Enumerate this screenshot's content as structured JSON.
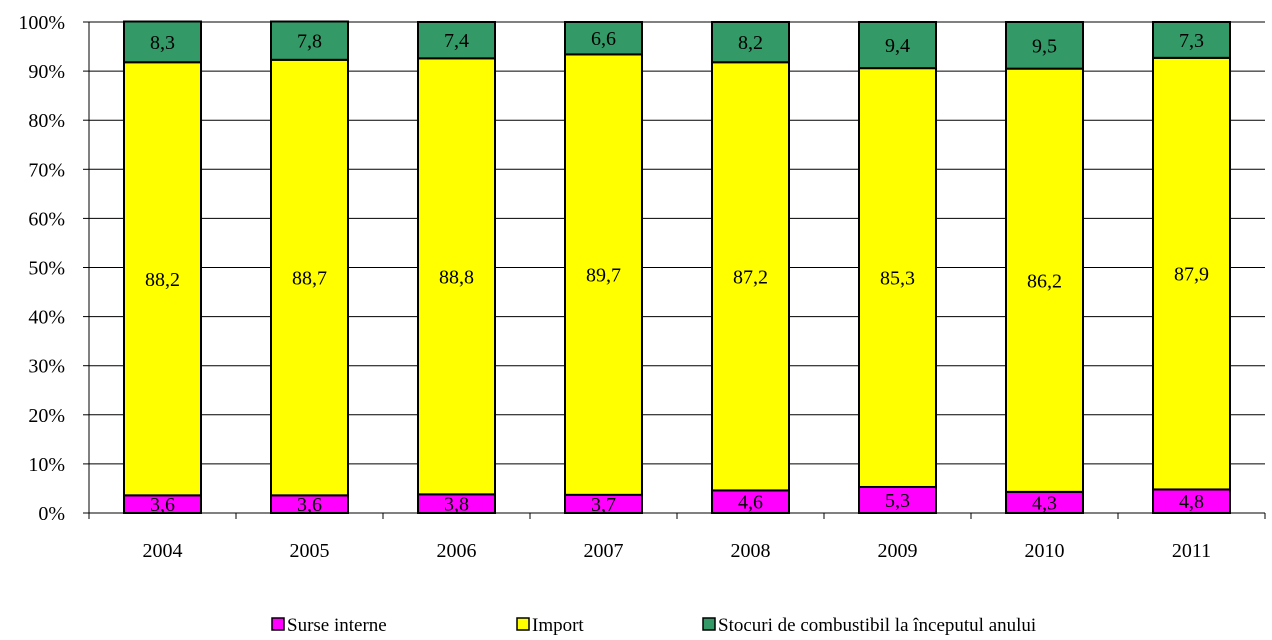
{
  "chart_data": {
    "type": "bar",
    "stacked": true,
    "percent_stacked": true,
    "categories": [
      "2004",
      "2005",
      "2006",
      "2007",
      "2008",
      "2009",
      "2010",
      "2011"
    ],
    "series": [
      {
        "name": "Surse interne",
        "color": "#ff00ff",
        "values": [
          3.6,
          3.6,
          3.8,
          3.7,
          4.6,
          5.3,
          4.3,
          4.8
        ],
        "labels": [
          "3,6",
          "3,6",
          "3,8",
          "3,7",
          "4,6",
          "5,3",
          "4,3",
          "4,8"
        ]
      },
      {
        "name": "Import",
        "color": "#ffff00",
        "values": [
          88.2,
          88.7,
          88.8,
          89.7,
          87.2,
          85.3,
          86.2,
          87.9
        ],
        "labels": [
          "88,2",
          "88,7",
          "88,8",
          "89,7",
          "87,2",
          "85,3",
          "86,2",
          "87,9"
        ]
      },
      {
        "name": "Stocuri de combustibil la începutul anului",
        "color": "#339966",
        "values": [
          8.3,
          7.8,
          7.4,
          6.6,
          8.2,
          9.4,
          9.5,
          7.3
        ],
        "labels": [
          "8,3",
          "7,8",
          "7,4",
          "6,6",
          "8,2",
          "9,4",
          "9,5",
          "7,3"
        ]
      }
    ],
    "y_ticks": [
      "0%",
      "10%",
      "20%",
      "30%",
      "40%",
      "50%",
      "60%",
      "70%",
      "80%",
      "90%",
      "100%"
    ],
    "ylim": [
      0,
      100
    ],
    "grid": true,
    "legend_position": "bottom"
  }
}
